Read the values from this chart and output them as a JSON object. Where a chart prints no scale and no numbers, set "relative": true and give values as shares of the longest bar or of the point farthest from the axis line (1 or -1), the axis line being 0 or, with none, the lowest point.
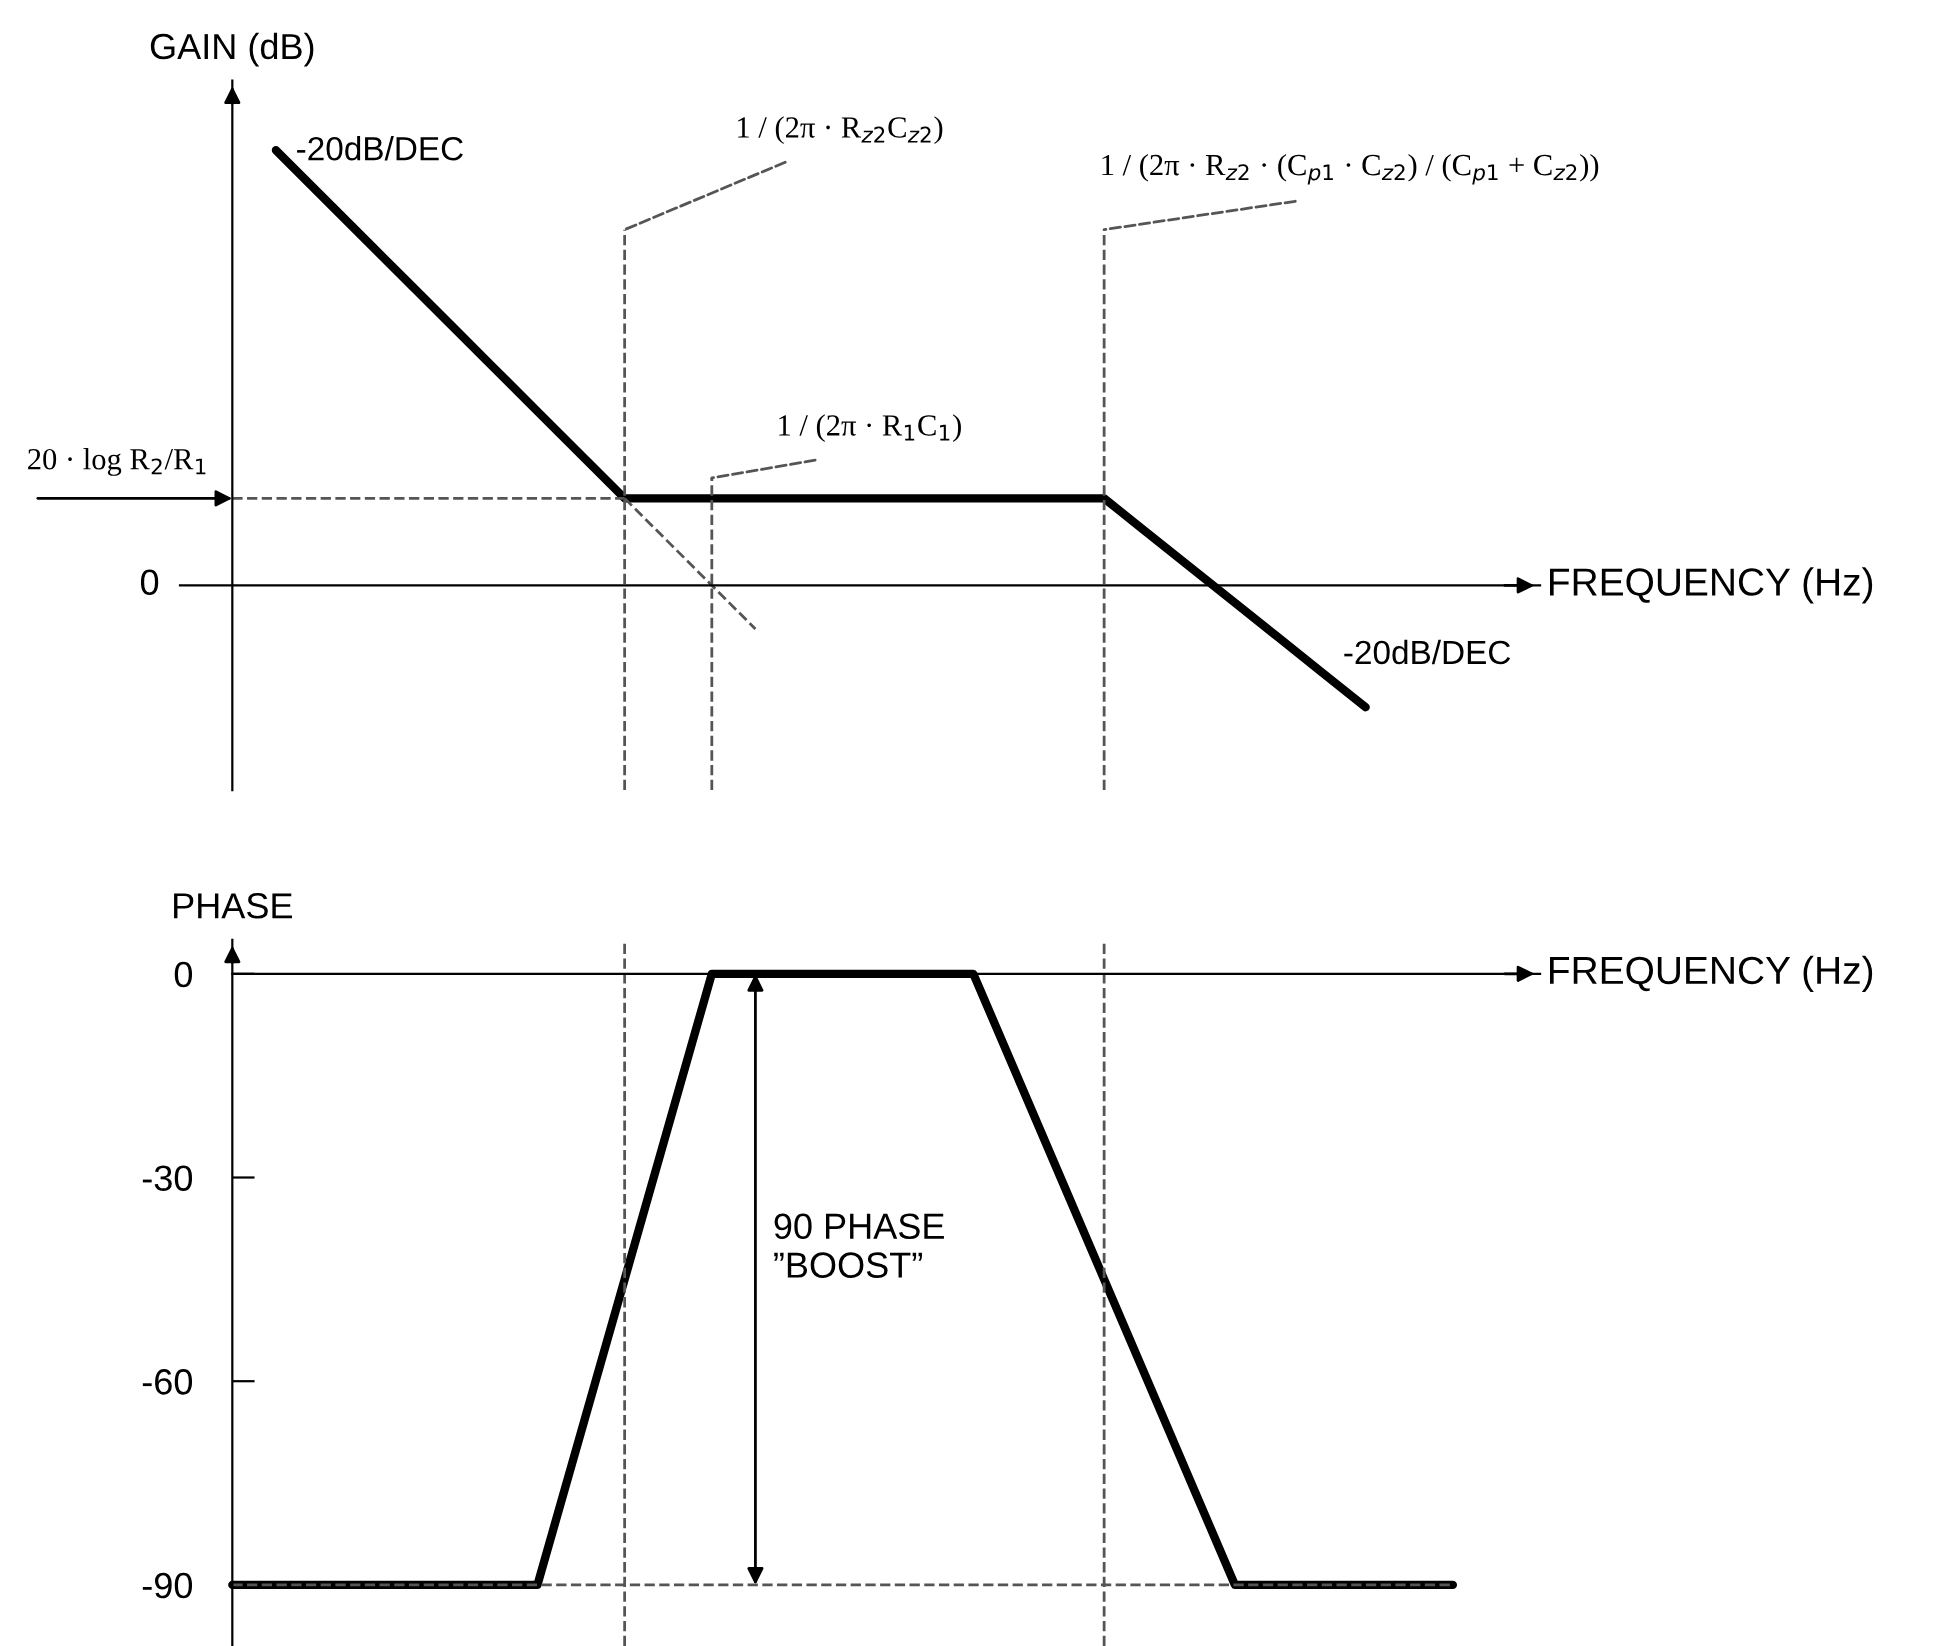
{
  "chart_data": [
    {
      "type": "line",
      "relative": true,
      "ylabel": "GAIN (dB)",
      "xlabel": "FREQUENCY (Hz)",
      "categories": [
        null,
        null,
        null,
        null,
        null,
        null,
        null,
        null,
        null,
        null,
        null,
        null,
        null,
        null,
        null,
        null,
        null,
        null,
        null,
        null,
        null,
        null,
        null,
        null,
        null,
        null,
        null,
        null,
        null,
        null,
        null
      ],
      "series": [
        {
          "color": "#000000",
          "line_style": "solid",
          "values": [
            null,
            1.0,
            0.9,
            0.8,
            0.7,
            0.6,
            0.5,
            0.4,
            0.3,
            0.2,
            0.2,
            0.2,
            0.2,
            0.2,
            0.2,
            0.2,
            0.2,
            0.2,
            0.2,
            0.2,
            0.2,
            0.12,
            0.04,
            -0.04,
            -0.12,
            -0.2,
            -0.28,
            null,
            null,
            null,
            null
          ]
        },
        {
          "color": "#555555",
          "line_style": "dashed",
          "values": [
            0.2,
            0.2,
            0.2,
            0.2,
            0.2,
            0.2,
            0.2,
            0.2,
            0.2,
            0.2,
            null,
            null,
            null,
            null,
            null,
            null,
            null,
            null,
            null,
            null,
            null,
            null,
            null,
            null,
            null,
            null,
            null,
            null,
            null,
            null,
            null
          ]
        },
        {
          "color": "#555555",
          "line_style": "dashed",
          "values": [
            null,
            null,
            null,
            null,
            null,
            null,
            null,
            null,
            null,
            0.2,
            0.1,
            0.0,
            -0.1,
            null,
            null,
            null,
            null,
            null,
            null,
            null,
            null,
            null,
            null,
            null,
            null,
            null,
            null,
            null,
            null,
            null,
            null
          ]
        }
      ],
      "annotations": [
        "0",
        "-20dB/DEC",
        "-20dB/DEC",
        "20 · log R$_{2}$/R$_{1}$",
        "1 / (2π · R$_{z2}$C$_{z2}$)",
        "1 / (2π · R$_{1}$C$_{1}$)",
        "1 / (2π · R$_{z2}$ · (C$_{p1}$ · C$_{z2}$) / (C$_{p1}$ + C$_{z2}$))"
      ]
    },
    {
      "type": "line",
      "ylabel": "PHASE",
      "xlabel": "FREQUENCY (Hz)",
      "ylim": [
        -99,
        5
      ],
      "yticks": [
        0,
        -30,
        -60,
        -90
      ],
      "categories": [
        null,
        null,
        null,
        null,
        null,
        null,
        null,
        null,
        null,
        null,
        null,
        null,
        null,
        null,
        null,
        null,
        null,
        null,
        null,
        null,
        null,
        null,
        null,
        null,
        null,
        null,
        null,
        null,
        null,
        null,
        null
      ],
      "series": [
        {
          "color": "#000000",
          "line_style": "solid",
          "values": [
            -90,
            -90,
            -90,
            -90,
            -90,
            -90,
            -90,
            -90,
            -67.5,
            -45,
            -22.5,
            0,
            0,
            0,
            0,
            0,
            0,
            0,
            -15,
            -30,
            -45,
            -60,
            -75,
            -90,
            -90,
            -90,
            -90,
            -90,
            -90,
            null,
            null
          ]
        }
      ],
      "ref_lines": [
        {
          "axis": "y",
          "value": -90,
          "line_style": "dashed",
          "color": "#555555"
        }
      ],
      "annotations": [
        "90 PHASE\n”BOOST”"
      ]
    }
  ]
}
